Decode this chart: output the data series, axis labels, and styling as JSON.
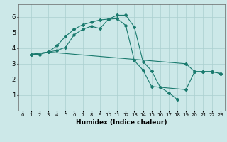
{
  "xlabel": "Humidex (Indice chaleur)",
  "bg_color": "#cce8e8",
  "line_color": "#1a7a6e",
  "grid_color": "#aacfcf",
  "xlim": [
    -0.5,
    23.5
  ],
  "ylim": [
    0,
    6.8
  ],
  "xticks": [
    0,
    1,
    2,
    3,
    4,
    5,
    6,
    7,
    8,
    9,
    10,
    11,
    12,
    13,
    14,
    15,
    16,
    17,
    18,
    19,
    20,
    21,
    22,
    23
  ],
  "yticks": [
    1,
    2,
    3,
    4,
    5,
    6
  ],
  "line1_x": [
    1,
    2,
    3,
    4,
    5,
    6,
    7,
    8,
    9,
    10,
    11,
    12,
    13,
    14,
    15,
    16,
    17,
    18
  ],
  "line1_y": [
    3.6,
    3.6,
    3.75,
    4.15,
    4.75,
    5.2,
    5.5,
    5.65,
    5.8,
    5.85,
    6.1,
    6.1,
    5.35,
    3.15,
    2.55,
    1.5,
    1.15,
    0.72
  ],
  "line2_x": [
    1,
    3,
    4,
    5,
    6,
    7,
    8,
    9,
    10,
    11,
    12,
    13,
    14,
    15,
    19,
    20,
    21,
    22,
    23
  ],
  "line2_y": [
    3.6,
    3.75,
    3.85,
    4.05,
    4.85,
    5.2,
    5.4,
    5.25,
    5.85,
    5.88,
    5.45,
    3.2,
    2.6,
    1.55,
    1.35,
    2.5,
    2.5,
    2.5,
    2.38
  ],
  "line3_x": [
    1,
    3,
    19,
    20,
    21,
    22,
    23
  ],
  "line3_y": [
    3.6,
    3.75,
    3.0,
    2.5,
    2.5,
    2.5,
    2.38
  ]
}
